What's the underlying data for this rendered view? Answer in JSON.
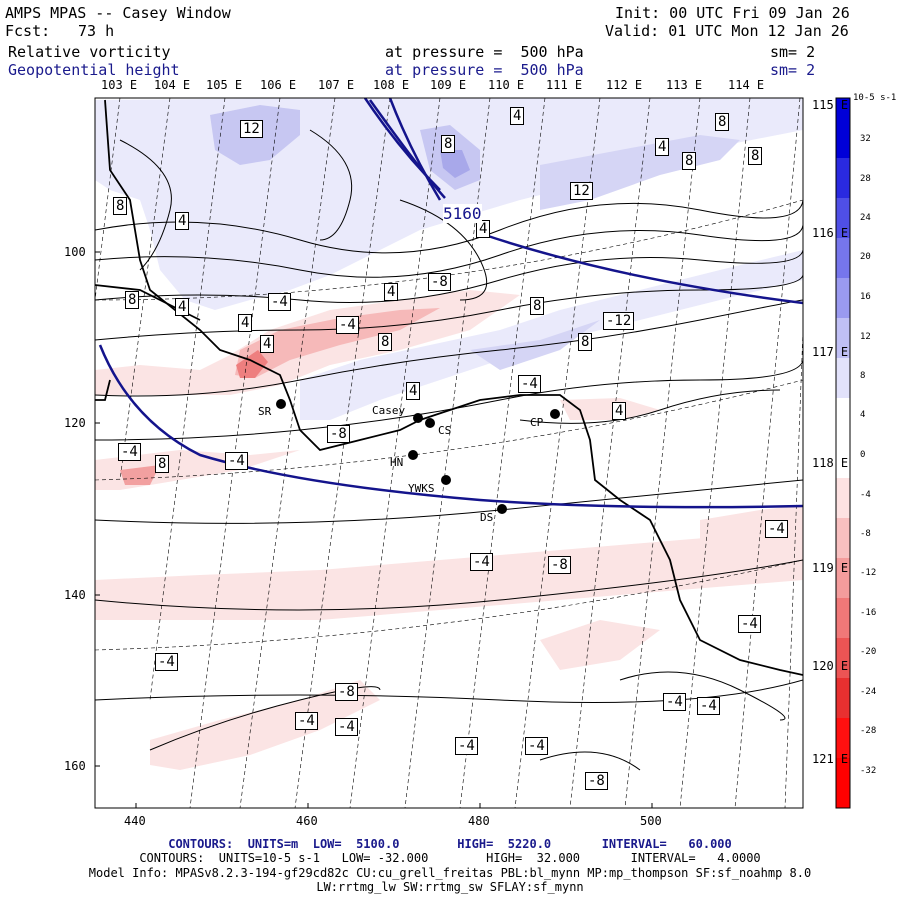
{
  "header": {
    "title": "AMPS MPAS -- Casey Window",
    "fcst_label": "Fcst:",
    "fcst_value": "73 h",
    "init": "Init: 00 UTC Fri 09 Jan 26",
    "valid": "Valid: 01 UTC Mon 12 Jan 26",
    "field1_name": "Relative vorticity",
    "field1_level": "at pressure =  500 hPa",
    "field1_sm": "sm= 2",
    "field2_name": "Geopotential height",
    "field2_level": "at pressure =  500 hPa",
    "field2_sm": "sm= 2"
  },
  "colors": {
    "geopotential": "#14148c",
    "positive_max": "#0000d8",
    "negative_max": "#ff0000",
    "coast": "#000000"
  },
  "top_longitudes": [
    "103 E",
    "104 E",
    "105 E",
    "106 E",
    "107 E",
    "108 E",
    "109 E",
    "110 E",
    "111 E",
    "112 E",
    "113 E",
    "114 E"
  ],
  "right_longitudes": [
    "115 E",
    "116 E",
    "117 E",
    "118 E",
    "119 E",
    "120 E",
    "121 E"
  ],
  "x_ticks": [
    "440",
    "460",
    "480",
    "500"
  ],
  "y_ticks": [
    "100",
    "120",
    "140",
    "160"
  ],
  "colorbar": {
    "unit": "10-5 s-1",
    "labels": [
      "32",
      "28",
      "24",
      "20",
      "16",
      "12",
      "8",
      "4",
      "0",
      "-4",
      "-8",
      "-12",
      "-16",
      "-20",
      "-24",
      "-28",
      "-32"
    ]
  },
  "contour_labels": {
    "geopotential": [
      "5160"
    ],
    "vorticity": [
      "12",
      "8",
      "4",
      "8",
      "4",
      "8",
      "8",
      "12",
      "8",
      "4",
      "4",
      "8",
      "4",
      "-4",
      "4",
      "-8",
      "4",
      "8",
      "-12",
      "-4",
      "4",
      "8",
      "8",
      "4",
      "-4",
      "4",
      "-8",
      "8",
      "-4",
      "-4",
      "-4",
      "-4",
      "-8",
      "-4",
      "-4",
      "-8",
      "-4",
      "-4",
      "-4",
      "-4",
      "-4",
      "-4",
      "-8"
    ]
  },
  "stations": [
    "SR",
    "Casey",
    "CS",
    "CP",
    "HN",
    "YWKS",
    "DS"
  ],
  "footer": {
    "line1": "CONTOURS:  UNITS=m  LOW=  5100.0        HIGH=  5220.0       INTERVAL=   60.000",
    "line2": "CONTOURS:  UNITS=10-5 s-1   LOW= -32.000        HIGH=  32.000       INTERVAL=   4.0000",
    "line3": "Model Info: MPASv8.2.3-194-gf29cd82c CU:cu_grell_freitas PBL:bl_mynn MP:mp_thompson SF:sf_noahmp 8.0",
    "line4": "LW:rrtmg_lw SW:rrtmg_sw SFLAY:sf_mynn"
  }
}
